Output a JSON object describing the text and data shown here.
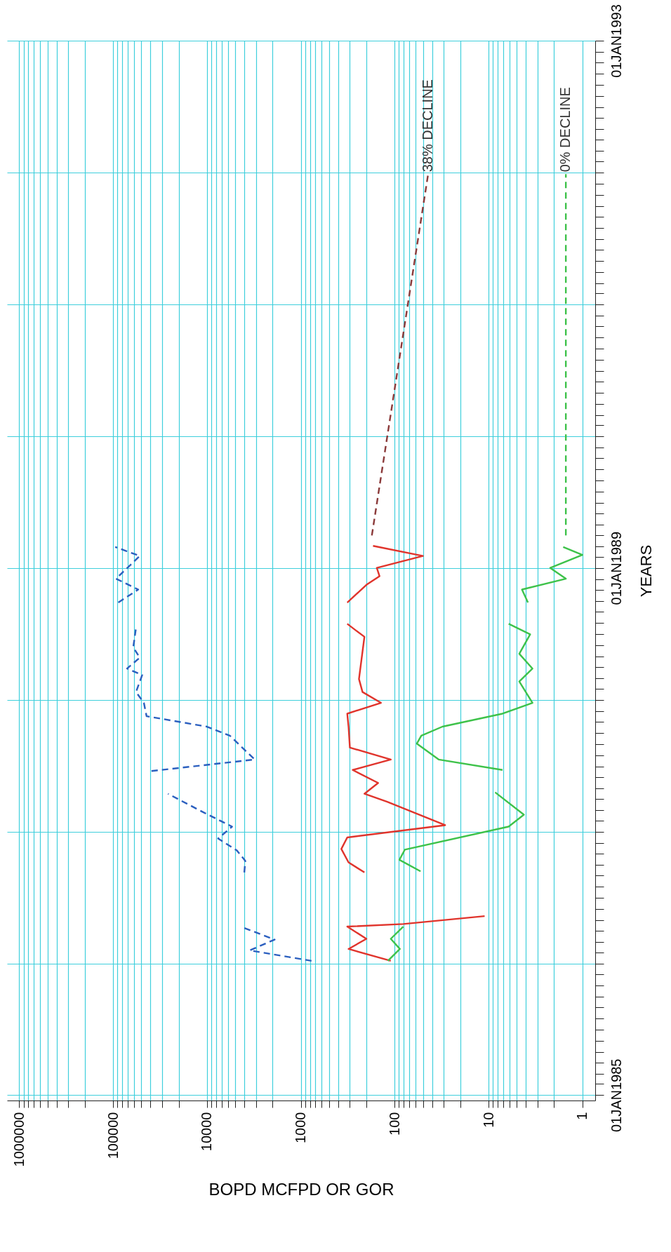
{
  "chart_data": {
    "type": "line",
    "orientation": "horizontal",
    "ylabel": "YEARS",
    "xlabel": "BOPD MCFPD OR GOR",
    "log": "x",
    "grid": true,
    "ylim": [
      "1984-12-17",
      "1993-01-01"
    ],
    "xlim": [
      1350000,
      0.73
    ],
    "yticks": [
      {
        "value": "1985-01-01",
        "label": "01JAN1985"
      },
      {
        "value": "1985-02-01",
        "label": null
      },
      {
        "value": "1985-03-01",
        "label": null
      },
      {
        "value": "1985-04-01",
        "label": null
      },
      {
        "value": "1985-05-01",
        "label": null
      },
      {
        "value": "1985-06-01",
        "label": null
      },
      {
        "value": "1985-07-01",
        "label": null
      },
      {
        "value": "1985-08-01",
        "label": null
      },
      {
        "value": "1985-09-01",
        "label": null
      },
      {
        "value": "1985-10-01",
        "label": null
      },
      {
        "value": "1985-11-01",
        "label": null
      },
      {
        "value": "1985-12-01",
        "label": null
      },
      {
        "value": "1986-01-01",
        "label": null
      },
      {
        "value": "1986-02-01",
        "label": null
      },
      {
        "value": "1986-03-01",
        "label": null
      },
      {
        "value": "1986-04-01",
        "label": null
      },
      {
        "value": "1986-05-01",
        "label": null
      },
      {
        "value": "1986-06-01",
        "label": null
      },
      {
        "value": "1986-07-01",
        "label": null
      },
      {
        "value": "1986-08-01",
        "label": null
      },
      {
        "value": "1986-09-01",
        "label": null
      },
      {
        "value": "1986-10-01",
        "label": null
      },
      {
        "value": "1986-11-01",
        "label": null
      },
      {
        "value": "1986-12-01",
        "label": null
      },
      {
        "value": "1987-01-01",
        "label": null
      },
      {
        "value": "1987-02-01",
        "label": null
      },
      {
        "value": "1987-03-01",
        "label": null
      },
      {
        "value": "1987-04-01",
        "label": null
      },
      {
        "value": "1987-05-01",
        "label": null
      },
      {
        "value": "1987-06-01",
        "label": null
      },
      {
        "value": "1987-07-01",
        "label": null
      },
      {
        "value": "1987-08-01",
        "label": null
      },
      {
        "value": "1987-09-01",
        "label": null
      },
      {
        "value": "1987-10-01",
        "label": null
      },
      {
        "value": "1987-11-01",
        "label": null
      },
      {
        "value": "1987-12-01",
        "label": null
      },
      {
        "value": "1988-01-01",
        "label": null
      },
      {
        "value": "1988-02-01",
        "label": null
      },
      {
        "value": "1988-03-01",
        "label": null
      },
      {
        "value": "1988-04-01",
        "label": null
      },
      {
        "value": "1988-05-01",
        "label": null
      },
      {
        "value": "1988-06-01",
        "label": null
      },
      {
        "value": "1988-07-01",
        "label": null
      },
      {
        "value": "1988-08-01",
        "label": null
      },
      {
        "value": "1988-09-01",
        "label": null
      },
      {
        "value": "1988-10-01",
        "label": null
      },
      {
        "value": "1988-11-01",
        "label": null
      },
      {
        "value": "1988-12-01",
        "label": null
      },
      {
        "value": "1989-01-01",
        "label": "01JAN1989"
      },
      {
        "value": "1989-02-01",
        "label": null
      },
      {
        "value": "1989-03-01",
        "label": null
      },
      {
        "value": "1989-04-01",
        "label": null
      },
      {
        "value": "1989-05-01",
        "label": null
      },
      {
        "value": "1989-06-01",
        "label": null
      },
      {
        "value": "1989-07-01",
        "label": null
      },
      {
        "value": "1989-08-01",
        "label": null
      },
      {
        "value": "1989-09-01",
        "label": null
      },
      {
        "value": "1989-10-01",
        "label": null
      },
      {
        "value": "1989-11-01",
        "label": null
      },
      {
        "value": "1989-12-01",
        "label": null
      },
      {
        "value": "1990-01-01",
        "label": null
      },
      {
        "value": "1990-02-01",
        "label": null
      },
      {
        "value": "1990-03-01",
        "label": null
      },
      {
        "value": "1990-04-01",
        "label": null
      },
      {
        "value": "1990-05-01",
        "label": null
      },
      {
        "value": "1990-06-01",
        "label": null
      },
      {
        "value": "1990-07-01",
        "label": null
      },
      {
        "value": "1990-08-01",
        "label": null
      },
      {
        "value": "1990-09-01",
        "label": null
      },
      {
        "value": "1990-10-01",
        "label": null
      },
      {
        "value": "1990-11-01",
        "label": null
      },
      {
        "value": "1990-12-01",
        "label": null
      },
      {
        "value": "1991-01-01",
        "label": null
      },
      {
        "value": "1991-02-01",
        "label": null
      },
      {
        "value": "1991-03-01",
        "label": null
      },
      {
        "value": "1991-04-01",
        "label": null
      },
      {
        "value": "1991-05-01",
        "label": null
      },
      {
        "value": "1991-06-01",
        "label": null
      },
      {
        "value": "1991-07-01",
        "label": null
      },
      {
        "value": "1991-08-01",
        "label": null
      },
      {
        "value": "1991-09-01",
        "label": null
      },
      {
        "value": "1991-10-01",
        "label": null
      },
      {
        "value": "1991-11-01",
        "label": null
      },
      {
        "value": "1991-12-01",
        "label": null
      },
      {
        "value": "1992-01-01",
        "label": null
      },
      {
        "value": "1992-02-01",
        "label": null
      },
      {
        "value": "1992-03-01",
        "label": null
      },
      {
        "value": "1992-04-01",
        "label": null
      },
      {
        "value": "1992-05-01",
        "label": null
      },
      {
        "value": "1992-06-01",
        "label": null
      },
      {
        "value": "1992-07-01",
        "label": null
      },
      {
        "value": "1992-08-01",
        "label": null
      },
      {
        "value": "1992-09-01",
        "label": null
      },
      {
        "value": "1992-10-01",
        "label": null
      },
      {
        "value": "1992-11-01",
        "label": null
      },
      {
        "value": "1992-12-01",
        "label": null
      },
      {
        "value": "1993-01-01",
        "label": "01JAN1993"
      }
    ],
    "xticks": [
      1,
      {
        "value": 2,
        "label": null
      },
      {
        "value": 3,
        "label": null
      },
      {
        "value": 4,
        "label": null
      },
      {
        "value": 5,
        "label": null
      },
      {
        "value": 6,
        "label": null
      },
      {
        "value": 7,
        "label": null
      },
      {
        "value": 8,
        "label": null
      },
      {
        "value": 9,
        "label": null
      },
      10,
      {
        "value": 20,
        "label": null
      },
      {
        "value": 30,
        "label": null
      },
      {
        "value": 40,
        "label": null
      },
      {
        "value": 50,
        "label": null
      },
      {
        "value": 60,
        "label": null
      },
      {
        "value": 70,
        "label": null
      },
      {
        "value": 80,
        "label": null
      },
      {
        "value": 90,
        "label": null
      },
      100,
      {
        "value": 200,
        "label": null
      },
      {
        "value": 300,
        "label": null
      },
      {
        "value": 400,
        "label": null
      },
      {
        "value": 500,
        "label": null
      },
      {
        "value": 600,
        "label": null
      },
      {
        "value": 700,
        "label": null
      },
      {
        "value": 800,
        "label": null
      },
      {
        "value": 900,
        "label": null
      },
      1000,
      {
        "value": 2000,
        "label": null
      },
      {
        "value": 3000,
        "label": null
      },
      {
        "value": 4000,
        "label": null
      },
      {
        "value": 5000,
        "label": null
      },
      {
        "value": 6000,
        "label": null
      },
      {
        "value": 7000,
        "label": null
      },
      {
        "value": 8000,
        "label": null
      },
      {
        "value": 9000,
        "label": null
      },
      10000,
      {
        "value": 20000,
        "label": null
      },
      {
        "value": 30000,
        "label": null
      },
      {
        "value": 40000,
        "label": null
      },
      {
        "value": 50000,
        "label": null
      },
      {
        "value": 60000,
        "label": null
      },
      {
        "value": 70000,
        "label": null
      },
      {
        "value": 80000,
        "label": null
      },
      {
        "value": 90000,
        "label": null
      },
      100000,
      {
        "value": 200000,
        "label": null
      },
      {
        "value": 300000,
        "label": null
      },
      {
        "value": 400000,
        "label": null
      },
      {
        "value": 500000,
        "label": null
      },
      {
        "value": 600000,
        "label": null
      },
      {
        "value": 700000,
        "label": null
      },
      {
        "value": 800000,
        "label": null
      },
      {
        "value": 900000,
        "label": null
      },
      1000000
    ],
    "series": [
      {
        "color": "#2b5fbf",
        "line_style": "dashed",
        "x": [
          "1986-01-08",
          "1986-02-06",
          "1986-03-08",
          "1986-04-10",
          "1986-06-15",
          "1986-09-10",
          "1986-10-12",
          "1986-11-10",
          "1986-12-13",
          "1987-01-15",
          "1987-02-24",
          "1987-04-16",
          "1987-05-15",
          "1987-06-18",
          "1987-07-20",
          "1987-09-24",
          "1987-10-19",
          "1987-11-17",
          "1987-12-24",
          "1988-01-23",
          "1988-03-10",
          "1988-03-28",
          "1988-04-27",
          "1988-05-26",
          "1988-07-19",
          "1988-08-25",
          "1988-09-27",
          "1988-11-02",
          "1988-12-02",
          "1989-02-03",
          "1989-02-28"
        ],
        "values": [
          770,
          3500,
          1900,
          4100,
          null,
          4000,
          3900,
          4800,
          7600,
          5400,
          11000,
          26000,
          null,
          39000,
          3100,
          5700,
          10000,
          44000,
          47000,
          57000,
          49000,
          71000,
          52000,
          61000,
          57000,
          null,
          88000,
          54000,
          93000,
          52000,
          95000
        ]
      },
      {
        "color": "#e0342c",
        "line_style": "solid",
        "x": [
          "1986-01-08",
          "1986-02-10",
          "1986-03-10",
          "1986-04-13",
          "1986-04-20",
          "1986-05-12",
          "1986-07-15",
          "1986-09-10",
          "1986-10-08",
          "1986-11-14",
          "1986-12-16",
          "1987-01-19",
          "1987-03-25",
          "1987-04-16",
          "1987-05-16",
          "1987-06-21",
          "1987-07-20",
          "1987-08-22",
          "1987-10-19",
          "1987-11-24",
          "1987-12-24",
          "1988-01-23",
          "1988-02-28",
          "1988-06-24",
          "1988-07-12",
          "1988-07-30",
          "1988-08-28",
          "1988-09-27",
          "1988-11-15",
          "1988-12-09",
          "1989-01-01",
          "1989-02-03",
          "1989-03-03"
        ],
        "values": [
          110,
          310,
          200,
          320,
          81,
          11,
          null,
          210,
          310,
          370,
          320,
          29,
          120,
          210,
          150,
          280,
          110,
          300,
          310,
          320,
          140,
          220,
          240,
          210,
          260,
          320,
          null,
          320,
          200,
          145,
          155,
          50,
          170
        ]
      },
      {
        "color": "#3ec24a",
        "line_style": "solid",
        "x": [
          "1986-01-08",
          "1986-02-10",
          "1986-03-10",
          "1986-04-13",
          "1986-07-01",
          "1986-09-13",
          "1986-10-15",
          "1986-11-12",
          "1987-01-15",
          "1987-02-17",
          "1987-04-20",
          "1987-05-20",
          "1987-06-21",
          "1987-07-20",
          "1987-09-02",
          "1987-09-24",
          "1987-10-19",
          "1987-11-24",
          "1987-12-24",
          "1988-02-21",
          "1988-03-28",
          "1988-05-08",
          "1988-07-01",
          "1988-07-30",
          "1988-08-28",
          "1988-09-27",
          "1988-11-02",
          "1988-12-02",
          "1989-01-01",
          "1989-02-06",
          "1989-02-28"
        ],
        "values": [
          118,
          88,
          110,
          81,
          null,
          53,
          89,
          78,
          6.1,
          4.2,
          8.5,
          null,
          7.1,
          34,
          58,
          52,
          31,
          7.1,
          3.4,
          4.7,
          3.4,
          4.7,
          3.6,
          6.1,
          null,
          3.8,
          4.4,
          1.5,
          2.2,
          1.0,
          1.6
        ]
      },
      {
        "color": "#8b3a3a",
        "line_style": "dashed",
        "x": [
          "1989-04-01",
          "1991-12-28"
        ],
        "values": [
          175,
          44
        ]
      },
      {
        "color": "#3ec24a",
        "line_style": "dashed",
        "x": [
          "1989-04-01",
          "1991-12-28"
        ],
        "values": [
          1.5,
          1.5
        ]
      }
    ],
    "annotations": [
      {
        "text": "38% DECLINE",
        "y": "1991-12-28",
        "x": 44
      },
      {
        "text": "0% DECLINE",
        "y": "1991-12-28",
        "x": 1.5
      }
    ]
  }
}
